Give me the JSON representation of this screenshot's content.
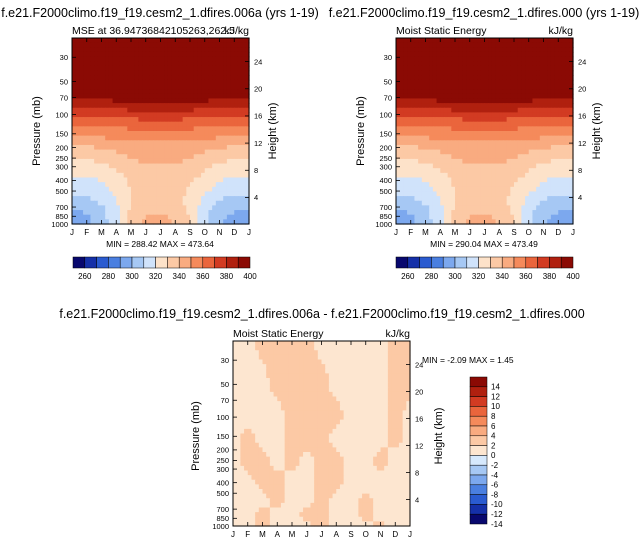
{
  "panels": {
    "top_left": {
      "title": "f.e21.F2000climo.f19_f19.cesm2_1.dfires.006a (yrs 1-19)",
      "left_label": "MSE at 36.94736842105263,262.5",
      "units": "kJ/kg",
      "ylabel": "Pressure (mb)",
      "y2label": "Height (km)",
      "minmax": "MIN = 288.42 MAX = 473.64"
    },
    "top_right": {
      "title": "f.e21.F2000climo.f19_f19.cesm2_1.dfires.000 (yrs 1-19)",
      "left_label": "Moist Static Energy",
      "units": "kJ/kg",
      "ylabel": "Pressure (mb)",
      "y2label": "Height (km)",
      "minmax": "MIN = 290.04 MAX = 473.49"
    },
    "bottom": {
      "title": "f.e21.F2000climo.f19_f19.cesm2_1.dfires.006a - f.e21.F2000climo.f19_f19.cesm2_1.dfires.000",
      "left_label": "Moist Static Energy",
      "units": "kJ/kg",
      "ylabel": "Pressure (mb)",
      "y2label": "Height (km)",
      "minmax": "MIN =  -2.09 MAX =   1.45"
    }
  },
  "colors": {
    "abs_scale": [
      "#08086e",
      "#1530a8",
      "#2a5bd0",
      "#4a7fe0",
      "#7ca8ee",
      "#a6c8f4",
      "#d0e3fb",
      "#fde2c9",
      "#fcc9a5",
      "#f9ab80",
      "#f58a5b",
      "#ea653c",
      "#d23b22",
      "#b0200f",
      "#8b0a04"
    ],
    "diff_scale": [
      "#08086e",
      "#1530a8",
      "#2a5bd0",
      "#4a7fe0",
      "#7ca8ee",
      "#a6c8f4",
      "#d6e9fd",
      "#fde6d0",
      "#fcc9a5",
      "#f9ab80",
      "#f58a5b",
      "#ea653c",
      "#d23b22",
      "#b0200f",
      "#8b0a04"
    ]
  },
  "chart_data": [
    {
      "type": "heatmap",
      "title": "f.e21.F2000climo.f19_f19.cesm2_1.dfires.006a (yrs 1-19)",
      "subtitle": "MSE at 36.94736842105263,262.5",
      "units": "kJ/kg",
      "xlabel": "",
      "ylabel": "Pressure (mb)",
      "y2label": "Height (km)",
      "x_ticks": [
        "J",
        "F",
        "M",
        "A",
        "M",
        "J",
        "J",
        "A",
        "S",
        "O",
        "N",
        "D",
        "J"
      ],
      "y_ticks": [
        30,
        50,
        70,
        100,
        150,
        200,
        250,
        300,
        400,
        500,
        700,
        850,
        1000
      ],
      "y_range": [
        20,
        1000
      ],
      "y_scale": "log",
      "y2_ticks": [
        4,
        8,
        12,
        16,
        20,
        24
      ],
      "colorbar_levels": [
        260,
        270,
        280,
        290,
        300,
        310,
        320,
        330,
        340,
        350,
        360,
        370,
        380,
        390,
        400
      ],
      "colorbar_labels": [
        "260",
        "280",
        "300",
        "320",
        "340",
        "360",
        "380",
        "400"
      ],
      "min": 288.42,
      "max": 473.64,
      "z_rows": [
        {
          "p": 20,
          "v": [
            420,
            420,
            420,
            420,
            420,
            420,
            420,
            420,
            420,
            420,
            420,
            420,
            420
          ]
        },
        {
          "p": 50,
          "v": [
            405,
            405,
            405,
            405,
            405,
            405,
            405,
            405,
            405,
            405,
            405,
            405,
            405
          ]
        },
        {
          "p": 70,
          "v": [
            392,
            392,
            393,
            394,
            395,
            396,
            396,
            396,
            395,
            394,
            393,
            392,
            392
          ]
        },
        {
          "p": 85,
          "v": [
            381,
            381,
            382,
            383,
            384,
            385,
            385,
            385,
            384,
            383,
            382,
            381,
            381
          ]
        },
        {
          "p": 100,
          "v": [
            372,
            372,
            373,
            374,
            375,
            376,
            376,
            376,
            375,
            374,
            373,
            372,
            372
          ]
        },
        {
          "p": 120,
          "v": [
            362,
            362,
            363,
            364,
            365,
            366,
            366,
            366,
            365,
            364,
            363,
            362,
            362
          ]
        },
        {
          "p": 150,
          "v": [
            353,
            353,
            354,
            355,
            356,
            357,
            357,
            357,
            356,
            355,
            354,
            353,
            353
          ]
        },
        {
          "p": 180,
          "v": [
            344,
            344,
            345,
            347,
            349,
            350,
            350,
            350,
            349,
            347,
            345,
            344,
            344
          ]
        },
        {
          "p": 220,
          "v": [
            335,
            335,
            336,
            340,
            343,
            346,
            346,
            346,
            343,
            340,
            336,
            335,
            335
          ]
        },
        {
          "p": 300,
          "v": [
            326,
            326,
            327,
            331,
            336,
            339,
            339,
            338,
            336,
            332,
            328,
            326,
            326
          ]
        },
        {
          "p": 400,
          "v": [
            318,
            318,
            320,
            325,
            332,
            336,
            336,
            334,
            331,
            326,
            320,
            318,
            318
          ]
        },
        {
          "p": 500,
          "v": [
            312,
            312,
            315,
            322,
            330,
            334,
            334,
            332,
            329,
            322,
            315,
            312,
            312
          ]
        },
        {
          "p": 600,
          "v": [
            306,
            308,
            312,
            320,
            330,
            334,
            335,
            333,
            328,
            318,
            310,
            307,
            306
          ]
        },
        {
          "p": 700,
          "v": [
            301,
            303,
            309,
            318,
            331,
            336,
            337,
            335,
            327,
            315,
            305,
            302,
            301
          ]
        },
        {
          "p": 850,
          "v": [
            297,
            299,
            306,
            318,
            333,
            340,
            341,
            338,
            329,
            313,
            302,
            298,
            297
          ]
        },
        {
          "p": 1000,
          "v": [
            295,
            297,
            304,
            318,
            334,
            342,
            343,
            340,
            330,
            312,
            300,
            296,
            295
          ]
        }
      ]
    },
    {
      "type": "heatmap",
      "title": "f.e21.F2000climo.f19_f19.cesm2_1.dfires.000 (yrs 1-19)",
      "subtitle": "Moist Static Energy",
      "units": "kJ/kg",
      "xlabel": "",
      "ylabel": "Pressure (mb)",
      "y2label": "Height (km)",
      "x_ticks": [
        "J",
        "F",
        "M",
        "A",
        "M",
        "J",
        "J",
        "A",
        "S",
        "O",
        "N",
        "D",
        "J"
      ],
      "y_ticks": [
        30,
        50,
        70,
        100,
        150,
        200,
        250,
        300,
        400,
        500,
        700,
        850,
        1000
      ],
      "y_range": [
        20,
        1000
      ],
      "y_scale": "log",
      "y2_ticks": [
        4,
        8,
        12,
        16,
        20,
        24
      ],
      "colorbar_levels": [
        260,
        270,
        280,
        290,
        300,
        310,
        320,
        330,
        340,
        350,
        360,
        370,
        380,
        390,
        400
      ],
      "colorbar_labels": [
        "260",
        "280",
        "300",
        "320",
        "340",
        "360",
        "380",
        "400"
      ],
      "min": 290.04,
      "max": 473.49,
      "z_rows": [
        {
          "p": 20,
          "v": [
            420,
            420,
            420,
            420,
            420,
            420,
            420,
            420,
            420,
            420,
            420,
            420,
            420
          ]
        },
        {
          "p": 50,
          "v": [
            405,
            405,
            405,
            405,
            405,
            405,
            405,
            405,
            405,
            405,
            405,
            405,
            405
          ]
        },
        {
          "p": 70,
          "v": [
            392,
            392,
            393,
            394,
            395,
            396,
            396,
            396,
            395,
            394,
            393,
            392,
            392
          ]
        },
        {
          "p": 85,
          "v": [
            381,
            381,
            382,
            383,
            384,
            385,
            385,
            385,
            384,
            383,
            382,
            381,
            381
          ]
        },
        {
          "p": 100,
          "v": [
            372,
            372,
            373,
            374,
            375,
            376,
            376,
            376,
            375,
            374,
            373,
            372,
            372
          ]
        },
        {
          "p": 120,
          "v": [
            362,
            362,
            363,
            364,
            365,
            366,
            366,
            366,
            365,
            364,
            363,
            362,
            362
          ]
        },
        {
          "p": 150,
          "v": [
            353,
            353,
            354,
            355,
            356,
            357,
            357,
            357,
            356,
            355,
            354,
            353,
            353
          ]
        },
        {
          "p": 180,
          "v": [
            344,
            344,
            345,
            347,
            349,
            350,
            350,
            350,
            349,
            347,
            345,
            344,
            344
          ]
        },
        {
          "p": 220,
          "v": [
            335,
            335,
            336,
            340,
            343,
            346,
            346,
            346,
            343,
            340,
            336,
            335,
            335
          ]
        },
        {
          "p": 300,
          "v": [
            326,
            326,
            327,
            331,
            336,
            339,
            339,
            338,
            336,
            332,
            328,
            326,
            326
          ]
        },
        {
          "p": 400,
          "v": [
            318,
            318,
            320,
            325,
            332,
            336,
            336,
            334,
            331,
            326,
            320,
            318,
            318
          ]
        },
        {
          "p": 500,
          "v": [
            312,
            312,
            315,
            322,
            330,
            334,
            334,
            332,
            329,
            322,
            315,
            312,
            312
          ]
        },
        {
          "p": 600,
          "v": [
            306,
            308,
            312,
            320,
            330,
            334,
            335,
            333,
            328,
            318,
            310,
            307,
            306
          ]
        },
        {
          "p": 700,
          "v": [
            301,
            303,
            309,
            318,
            331,
            336,
            337,
            335,
            327,
            315,
            305,
            302,
            301
          ]
        },
        {
          "p": 850,
          "v": [
            297,
            299,
            306,
            318,
            333,
            340,
            341,
            338,
            329,
            313,
            302,
            298,
            297
          ]
        },
        {
          "p": 1000,
          "v": [
            295,
            297,
            304,
            318,
            334,
            342,
            343,
            340,
            330,
            312,
            300,
            296,
            295
          ]
        }
      ]
    },
    {
      "type": "heatmap",
      "title": "f.e21.F2000climo.f19_f19.cesm2_1.dfires.006a - f.e21.F2000climo.f19_f19.cesm2_1.dfires.000",
      "subtitle": "Moist Static Energy",
      "units": "kJ/kg",
      "xlabel": "",
      "ylabel": "Pressure (mb)",
      "y2label": "Height (km)",
      "x_ticks": [
        "J",
        "F",
        "M",
        "A",
        "M",
        "J",
        "J",
        "A",
        "S",
        "O",
        "N",
        "D",
        "J"
      ],
      "y_ticks": [
        30,
        50,
        70,
        100,
        150,
        200,
        250,
        300,
        400,
        500,
        700,
        850,
        1000
      ],
      "y_range": [
        20,
        1000
      ],
      "y_scale": "log",
      "y2_ticks": [
        4,
        8,
        12,
        16,
        20,
        24
      ],
      "colorbar_levels": [
        -14,
        -12,
        -10,
        -8,
        -6,
        -4,
        -2,
        0,
        2,
        4,
        6,
        8,
        10,
        12,
        14
      ],
      "colorbar_labels": [
        "14",
        "12",
        "10",
        "8",
        "6",
        "4",
        "2",
        "0",
        "-2",
        "-4",
        "-6",
        "-8",
        "-10",
        "-12",
        "-14"
      ],
      "min": -2.09,
      "max": 1.45,
      "z_rows": [
        {
          "p": 20,
          "v": [
            -0.5,
            -0.5,
            0.5,
            0.6,
            0.5,
            0.5,
            -0.5,
            -0.5,
            -0.5,
            -0.5,
            -0.5,
            0.5,
            0.5
          ]
        },
        {
          "p": 50,
          "v": [
            -0.5,
            -0.5,
            -0.5,
            0.5,
            0.5,
            0.5,
            0.5,
            -0.5,
            -0.5,
            -0.5,
            -0.5,
            0.5,
            0.5
          ]
        },
        {
          "p": 100,
          "v": [
            -0.5,
            -0.5,
            -0.5,
            -0.5,
            0.5,
            0.5,
            0.5,
            0.5,
            -0.5,
            -0.5,
            -0.5,
            0.5,
            -0.5
          ]
        },
        {
          "p": 150,
          "v": [
            -0.5,
            0.5,
            -0.5,
            -0.5,
            0.5,
            0.5,
            0.5,
            -0.5,
            -0.5,
            -0.5,
            -0.5,
            0.5,
            -0.5
          ]
        },
        {
          "p": 250,
          "v": [
            -0.5,
            0.5,
            0.5,
            -0.5,
            0.5,
            -0.5,
            0.5,
            0.5,
            -0.5,
            -0.5,
            0.5,
            -0.5,
            -0.5
          ]
        },
        {
          "p": 400,
          "v": [
            -0.5,
            -0.5,
            0.5,
            0.5,
            -0.5,
            -0.5,
            0.5,
            0.5,
            -0.5,
            -0.5,
            -0.5,
            -0.5,
            -0.5
          ]
        },
        {
          "p": 600,
          "v": [
            -0.5,
            -0.5,
            -0.5,
            0.5,
            -0.5,
            -0.5,
            0.5,
            -0.5,
            -0.5,
            0.5,
            -0.5,
            -0.5,
            -0.5
          ]
        },
        {
          "p": 800,
          "v": [
            -0.5,
            -0.5,
            0.5,
            -0.5,
            -0.5,
            0.5,
            0.5,
            -0.5,
            -0.5,
            0.5,
            -0.5,
            -0.5,
            -0.5
          ]
        },
        {
          "p": 1000,
          "v": [
            -0.5,
            -0.5,
            0.5,
            -0.5,
            -0.5,
            -0.5,
            0.5,
            -0.5,
            -0.5,
            -0.5,
            0.5,
            -0.5,
            -0.5
          ]
        }
      ]
    }
  ]
}
